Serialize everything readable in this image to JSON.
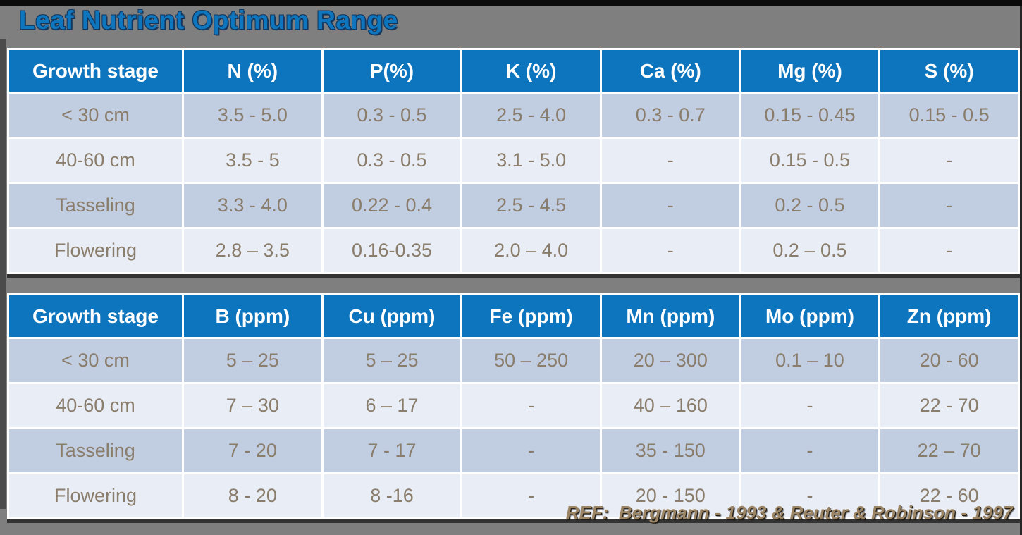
{
  "slide": {
    "title": "Leaf Nutrient Optimum Range",
    "reference": "REF:  Bergmann - 1993 & Reuter & Robinson - 1997"
  },
  "colors": {
    "background": "#7F7F7F",
    "header_bg": "#0D75BE",
    "header_text": "#FFFFFF",
    "row_odd_bg": "#C1CDE1",
    "row_even_bg": "#E9EDF5",
    "cell_text": "#8A7D6B",
    "grid_border": "#FFFFFF",
    "title_text": "#0E76BE",
    "title_shadow": "#14375E",
    "reference_text": "#9C8565",
    "reference_shadow": "#231D13",
    "edge_dark": "#4B4B4B"
  },
  "macronutrient_table": {
    "headers": [
      "Growth stage",
      "N (%)",
      "P(%)",
      "K (%)",
      "Ca (%)",
      "Mg (%)",
      "S (%)"
    ],
    "rows": [
      [
        "< 30 cm",
        "3.5 - 5.0",
        "0.3 - 0.5",
        "2.5 - 4.0",
        "0.3 - 0.7",
        "0.15 - 0.45",
        "0.15 - 0.5"
      ],
      [
        "40-60 cm",
        "3.5 - 5",
        "0.3 - 0.5",
        "3.1 - 5.0",
        "-",
        "0.15 - 0.5",
        "-"
      ],
      [
        "Tasseling",
        "3.3 - 4.0",
        "0.22 - 0.4",
        "2.5 - 4.5",
        "-",
        "0.2 - 0.5",
        "-"
      ],
      [
        "Flowering",
        "2.8 – 3.5",
        "0.16-0.35",
        "2.0 – 4.0",
        "-",
        "0.2 – 0.5",
        "-"
      ]
    ]
  },
  "micronutrient_table": {
    "headers": [
      "Growth stage",
      "B (ppm)",
      "Cu (ppm)",
      "Fe (ppm)",
      "Mn (ppm)",
      "Mo (ppm)",
      "Zn (ppm)"
    ],
    "rows": [
      [
        "< 30 cm",
        "5 – 25",
        "5 – 25",
        "50 – 250",
        "20 – 300",
        "0.1 – 10",
        "20 - 60"
      ],
      [
        "40-60 cm",
        "7 – 30",
        "6 – 17",
        "-",
        "40 – 160",
        "-",
        "22 - 70"
      ],
      [
        "Tasseling",
        "7 - 20",
        "7 - 17",
        "-",
        "35 - 150",
        "-",
        "22 – 70"
      ],
      [
        "Flowering",
        "8 - 20",
        "8 -16",
        "-",
        "20 - 150",
        "-",
        "22 - 60"
      ]
    ]
  }
}
